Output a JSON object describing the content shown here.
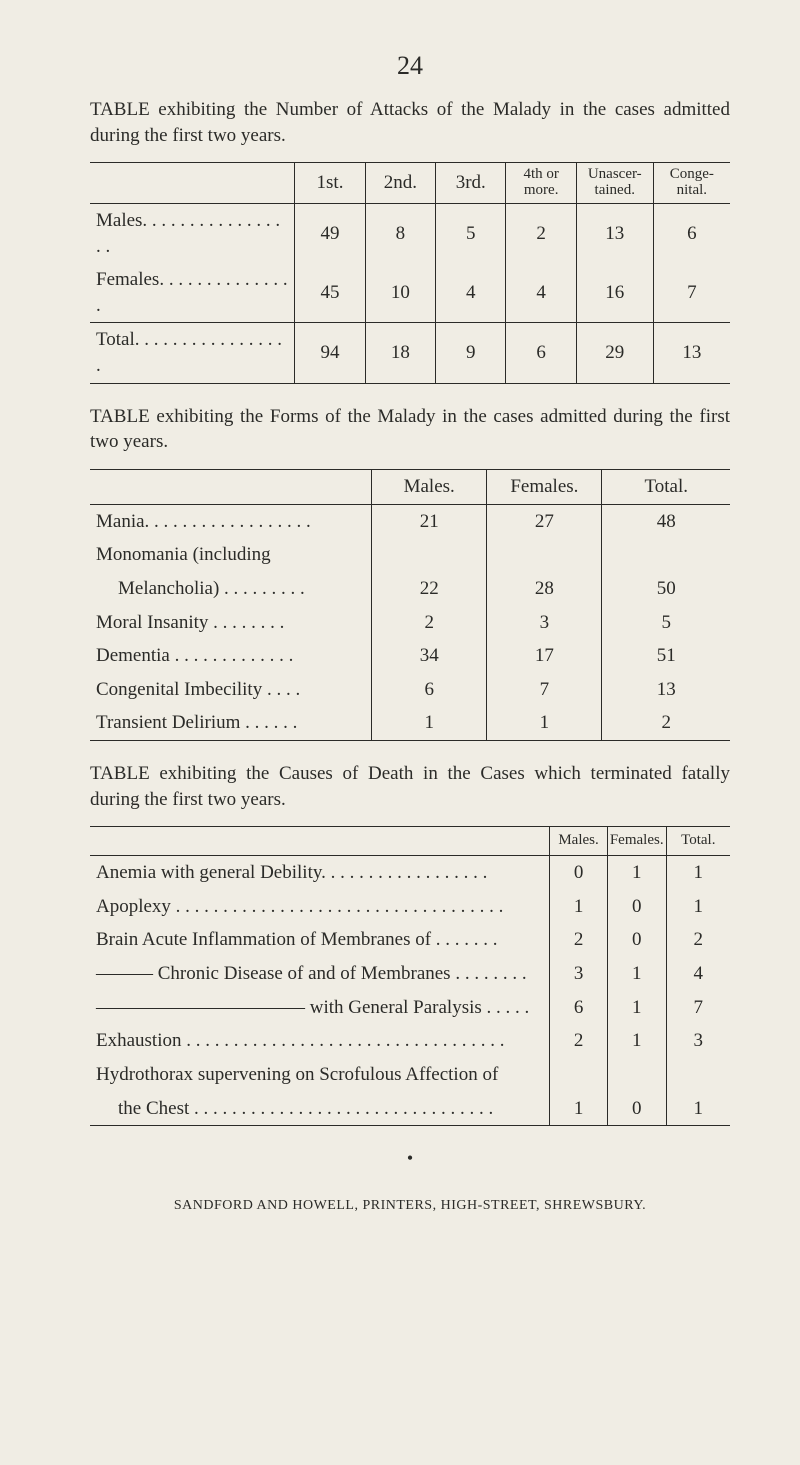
{
  "page_number": "24",
  "table1_intro": "TABLE exhibiting the Number of Attacks of the Malady in the cases admitted during the first two years.",
  "t1": {
    "headers": [
      "",
      "1st.",
      "2nd.",
      "3rd.",
      "4th or more.",
      "Unascer- tained.",
      "Conge- nital."
    ],
    "rows": [
      {
        "label": "Males. . . . . . . . . . . . . . . . .",
        "c": [
          "49",
          "8",
          "5",
          "2",
          "13",
          "6"
        ]
      },
      {
        "label": "Females. . . . . . . . . . . . . . .",
        "c": [
          "45",
          "10",
          "4",
          "4",
          "16",
          "7"
        ]
      }
    ],
    "total": {
      "label": "Total. . . . . . . . . . . . . . . . .",
      "c": [
        "94",
        "18",
        "9",
        "6",
        "29",
        "13"
      ]
    }
  },
  "table2_intro": "TABLE exhibiting the Forms of the Malady in the cases admitted during the first two years.",
  "t2": {
    "headers": [
      "",
      "Males.",
      "Females.",
      "Total."
    ],
    "rows": [
      {
        "label": "Mania. . . . . . . . . . . . . . . . . .",
        "c": [
          "21",
          "27",
          "48"
        ]
      },
      {
        "label": "Monomania (including",
        "c": [
          "",
          "",
          ""
        ]
      },
      {
        "label": "Melancholia) . . . . . . . . .",
        "indent": true,
        "c": [
          "22",
          "28",
          "50"
        ]
      },
      {
        "label": "Moral Insanity  . . . . . . . .",
        "c": [
          "2",
          "3",
          "5"
        ]
      },
      {
        "label": "Dementia . . . . . . . . . . . . .",
        "c": [
          "34",
          "17",
          "51"
        ]
      },
      {
        "label": "Congenital Imbecility . . . .",
        "c": [
          "6",
          "7",
          "13"
        ]
      },
      {
        "label": "Transient Delirium . . . . . .",
        "c": [
          "1",
          "1",
          "2"
        ]
      }
    ]
  },
  "table3_intro": "TABLE exhibiting the Causes of Death in the Cases which terminated fatally during the first two years.",
  "t3": {
    "headers": [
      "",
      "Males.",
      "Females.",
      "Total."
    ],
    "rows": [
      {
        "label": "Anemia with general Debility. . .  . . . . . . . . . . . . . . .",
        "c": [
          "0",
          "1",
          "1"
        ]
      },
      {
        "label": "Apoplexy . . . . . . . . . . . . . . . . . . . . . . . . . . . . . . . . . . .",
        "c": [
          "1",
          "0",
          "1"
        ]
      },
      {
        "label": "Brain Acute Inflammation of Membranes of  . .  . . . . .",
        "c": [
          "2",
          "0",
          "2"
        ]
      },
      {
        "label": "——— Chronic Disease of and of Membranes . . . . . . . .",
        "c": [
          "3",
          "1",
          "4"
        ]
      },
      {
        "label": "——————————— with General Paralysis . . . . .",
        "c": [
          "6",
          "1",
          "7"
        ]
      },
      {
        "label": "Exhaustion . . . . . . . . . . . . . . . . . . . . . . . . . . . . . . . . . .",
        "c": [
          "2",
          "1",
          "3"
        ]
      },
      {
        "label": "Hydrothorax supervening on Scrofulous Affection of",
        "c": [
          "",
          "",
          ""
        ]
      },
      {
        "label": "the Chest . . . . . . . . . . . . . . . . . . . . . . . . . . . . . . . .",
        "indent": true,
        "c": [
          "1",
          "0",
          "1"
        ]
      }
    ]
  },
  "footer": "SANDFORD AND HOWELL, PRINTERS, HIGH-STREET, SHREWSBURY."
}
